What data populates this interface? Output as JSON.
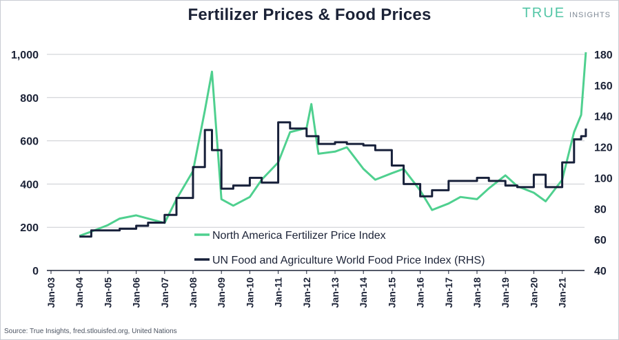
{
  "header": {
    "title": "Fertilizer Prices & Food Prices",
    "logo_word": "TRUE",
    "logo_sub": "INSIGHTS"
  },
  "source": "Source: True Insights, fred.stlouisfed.org, United Nations",
  "colors": {
    "fertilizer": "#4fd08f",
    "food": "#17203a",
    "grid": "#c9ccd1",
    "axis": "#1b2236"
  },
  "chart_data": {
    "type": "line",
    "title": "Fertilizer Prices & Food Prices",
    "left_axis": {
      "ylim": [
        0,
        1000
      ],
      "ticks": [
        "0",
        "200",
        "400",
        "600",
        "800",
        "1,000"
      ]
    },
    "right_axis": {
      "ylim": [
        40,
        180
      ],
      "ticks": [
        "40",
        "60",
        "80",
        "100",
        "120",
        "140",
        "160",
        "180"
      ]
    },
    "x_ticks": [
      "Jan-03",
      "Jan-04",
      "Jan-05",
      "Jan-06",
      "Jan-07",
      "Jan-08",
      "Jan-09",
      "Jan-10",
      "Jan-11",
      "Jan-12",
      "Jan-13",
      "Jan-14",
      "Jan-15",
      "Jan-16",
      "Jan-17",
      "Jan-18",
      "Jan-19",
      "Jan-20",
      "Jan-21"
    ],
    "grid": "horizontal",
    "legend_position": "bottom-center",
    "series": [
      {
        "name": "North America Fertilizer Price Index",
        "axis": "left",
        "x": [
          "2004-01",
          "2004-06",
          "2005-01",
          "2005-06",
          "2006-01",
          "2006-06",
          "2007-01",
          "2007-06",
          "2008-01",
          "2008-06",
          "2008-09",
          "2009-01",
          "2009-06",
          "2010-01",
          "2010-06",
          "2011-01",
          "2011-06",
          "2012-01",
          "2012-03",
          "2012-06",
          "2013-01",
          "2013-06",
          "2014-01",
          "2014-06",
          "2015-01",
          "2015-06",
          "2016-01",
          "2016-06",
          "2017-01",
          "2017-06",
          "2018-01",
          "2018-06",
          "2019-01",
          "2019-06",
          "2020-01",
          "2020-06",
          "2021-01",
          "2021-06",
          "2021-09",
          "2021-11"
        ],
        "values": [
          160,
          180,
          210,
          240,
          255,
          240,
          220,
          330,
          460,
          740,
          920,
          330,
          300,
          340,
          420,
          500,
          640,
          660,
          770,
          540,
          550,
          570,
          470,
          420,
          450,
          470,
          370,
          280,
          310,
          340,
          330,
          380,
          440,
          390,
          360,
          320,
          420,
          640,
          720,
          1010
        ]
      },
      {
        "name": "UN Food and Agriculture World Food Price Index (RHS)",
        "axis": "right",
        "x": [
          "2004-01",
          "2004-06",
          "2005-01",
          "2005-06",
          "2006-01",
          "2006-06",
          "2007-01",
          "2007-06",
          "2008-01",
          "2008-06",
          "2008-09",
          "2009-01",
          "2009-06",
          "2010-01",
          "2010-06",
          "2011-01",
          "2011-06",
          "2012-01",
          "2012-06",
          "2013-01",
          "2013-06",
          "2014-01",
          "2014-06",
          "2015-01",
          "2015-06",
          "2016-01",
          "2016-06",
          "2017-01",
          "2017-06",
          "2018-01",
          "2018-06",
          "2019-01",
          "2019-06",
          "2020-01",
          "2020-06",
          "2021-01",
          "2021-06",
          "2021-09",
          "2021-11"
        ],
        "values": [
          62,
          66,
          66,
          67,
          69,
          71,
          76,
          87,
          107,
          131,
          118,
          93,
          95,
          100,
          97,
          136,
          132,
          127,
          122,
          123,
          122,
          121,
          118,
          108,
          96,
          88,
          92,
          98,
          98,
          100,
          98,
          95,
          94,
          102,
          94,
          110,
          125,
          127,
          132
        ]
      }
    ]
  }
}
